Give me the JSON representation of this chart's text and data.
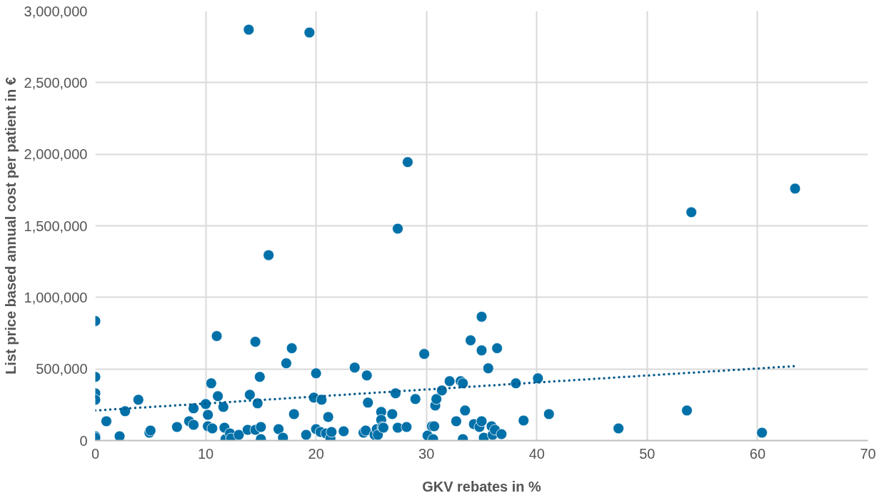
{
  "chart_data": {
    "type": "scatter",
    "xlabel": "GKV rebates in %",
    "ylabel": "List price based annual cost per patient in €",
    "xlim": [
      0,
      70
    ],
    "xticks": [
      0,
      10,
      20,
      30,
      40,
      50,
      60,
      70
    ],
    "ylim": [
      0,
      3000000
    ],
    "yticks": [
      {
        "value": 0,
        "label": "0"
      },
      {
        "value": 500000,
        "label": "500,000"
      },
      {
        "value": 1000000,
        "label": "1,000,000"
      },
      {
        "value": 1500000,
        "label": "1,500,000"
      },
      {
        "value": 2000000,
        "label": "2,000,000"
      },
      {
        "value": 2500000,
        "label": "2,500,000"
      },
      {
        "value": 3000000,
        "label": "3,000,000"
      }
    ],
    "grid": true,
    "marker": "circle",
    "series": [
      {
        "color": "#0070a8",
        "x": [
          0,
          0,
          0,
          0,
          0,
          0,
          1.0,
          2.2,
          2.7,
          3.9,
          4.9,
          5.0,
          7.4,
          8.5,
          8.9,
          8.9,
          10.0,
          10.2,
          10.2,
          10.5,
          10.6,
          11.0,
          11.1,
          11.6,
          11.7,
          11.8,
          12.2,
          12.3,
          13.0,
          13.8,
          13.9,
          14.0,
          14.5,
          14.5,
          14.7,
          14.9,
          15.0,
          15.0,
          15.7,
          16.6,
          17.0,
          17.3,
          17.8,
          18.0,
          19.1,
          19.4,
          19.8,
          20.0,
          20.0,
          20.4,
          20.5,
          20.9,
          21.1,
          21.3,
          21.4,
          22.5,
          23.5,
          24.3,
          24.5,
          24.6,
          24.7,
          25.3,
          25.5,
          25.6,
          25.9,
          25.9,
          26.0,
          26.1,
          26.9,
          27.2,
          27.4,
          27.4,
          28.2,
          28.3,
          29.0,
          29.8,
          30.1,
          30.5,
          30.6,
          30.7,
          30.8,
          30.9,
          31.4,
          32.1,
          32.7,
          33.1,
          33.3,
          33.3,
          33.5,
          34.0,
          34.3,
          34.8,
          35.0,
          35.0,
          35.0,
          35.2,
          35.6,
          35.9,
          36.0,
          36.2,
          36.4,
          36.8,
          38.1,
          38.8,
          40.1,
          41.1,
          47.4,
          53.6,
          54.0,
          60.4,
          63.4
        ],
        "values": [
          835000,
          445000,
          330000,
          285000,
          30000,
          20000,
          135000,
          30000,
          205000,
          285000,
          55000,
          70000,
          95000,
          135000,
          225000,
          110000,
          255000,
          180000,
          100000,
          400000,
          85000,
          730000,
          310000,
          235000,
          90000,
          10000,
          50000,
          15000,
          40000,
          75000,
          2870000,
          320000,
          690000,
          75000,
          260000,
          445000,
          95000,
          10000,
          1295000,
          80000,
          20000,
          540000,
          645000,
          185000,
          40000,
          2850000,
          300000,
          470000,
          80000,
          60000,
          285000,
          50000,
          165000,
          15000,
          60000,
          65000,
          510000,
          55000,
          70000,
          455000,
          265000,
          40000,
          80000,
          40000,
          200000,
          145000,
          95000,
          90000,
          185000,
          330000,
          1480000,
          90000,
          95000,
          1945000,
          290000,
          605000,
          35000,
          100000,
          10000,
          100000,
          245000,
          290000,
          350000,
          415000,
          135000,
          415000,
          400000,
          10000,
          210000,
          700000,
          115000,
          95000,
          135000,
          865000,
          630000,
          20000,
          505000,
          100000,
          40000,
          75000,
          645000,
          45000,
          400000,
          140000,
          435000,
          185000,
          85000,
          210000,
          1595000,
          55000,
          1760000
        ]
      },
      {
        "type": "line",
        "color": "#005a8c",
        "line_style": "dotted",
        "marker": "none",
        "x": [
          0,
          63.4
        ],
        "values": [
          210000,
          520000
        ]
      }
    ]
  }
}
